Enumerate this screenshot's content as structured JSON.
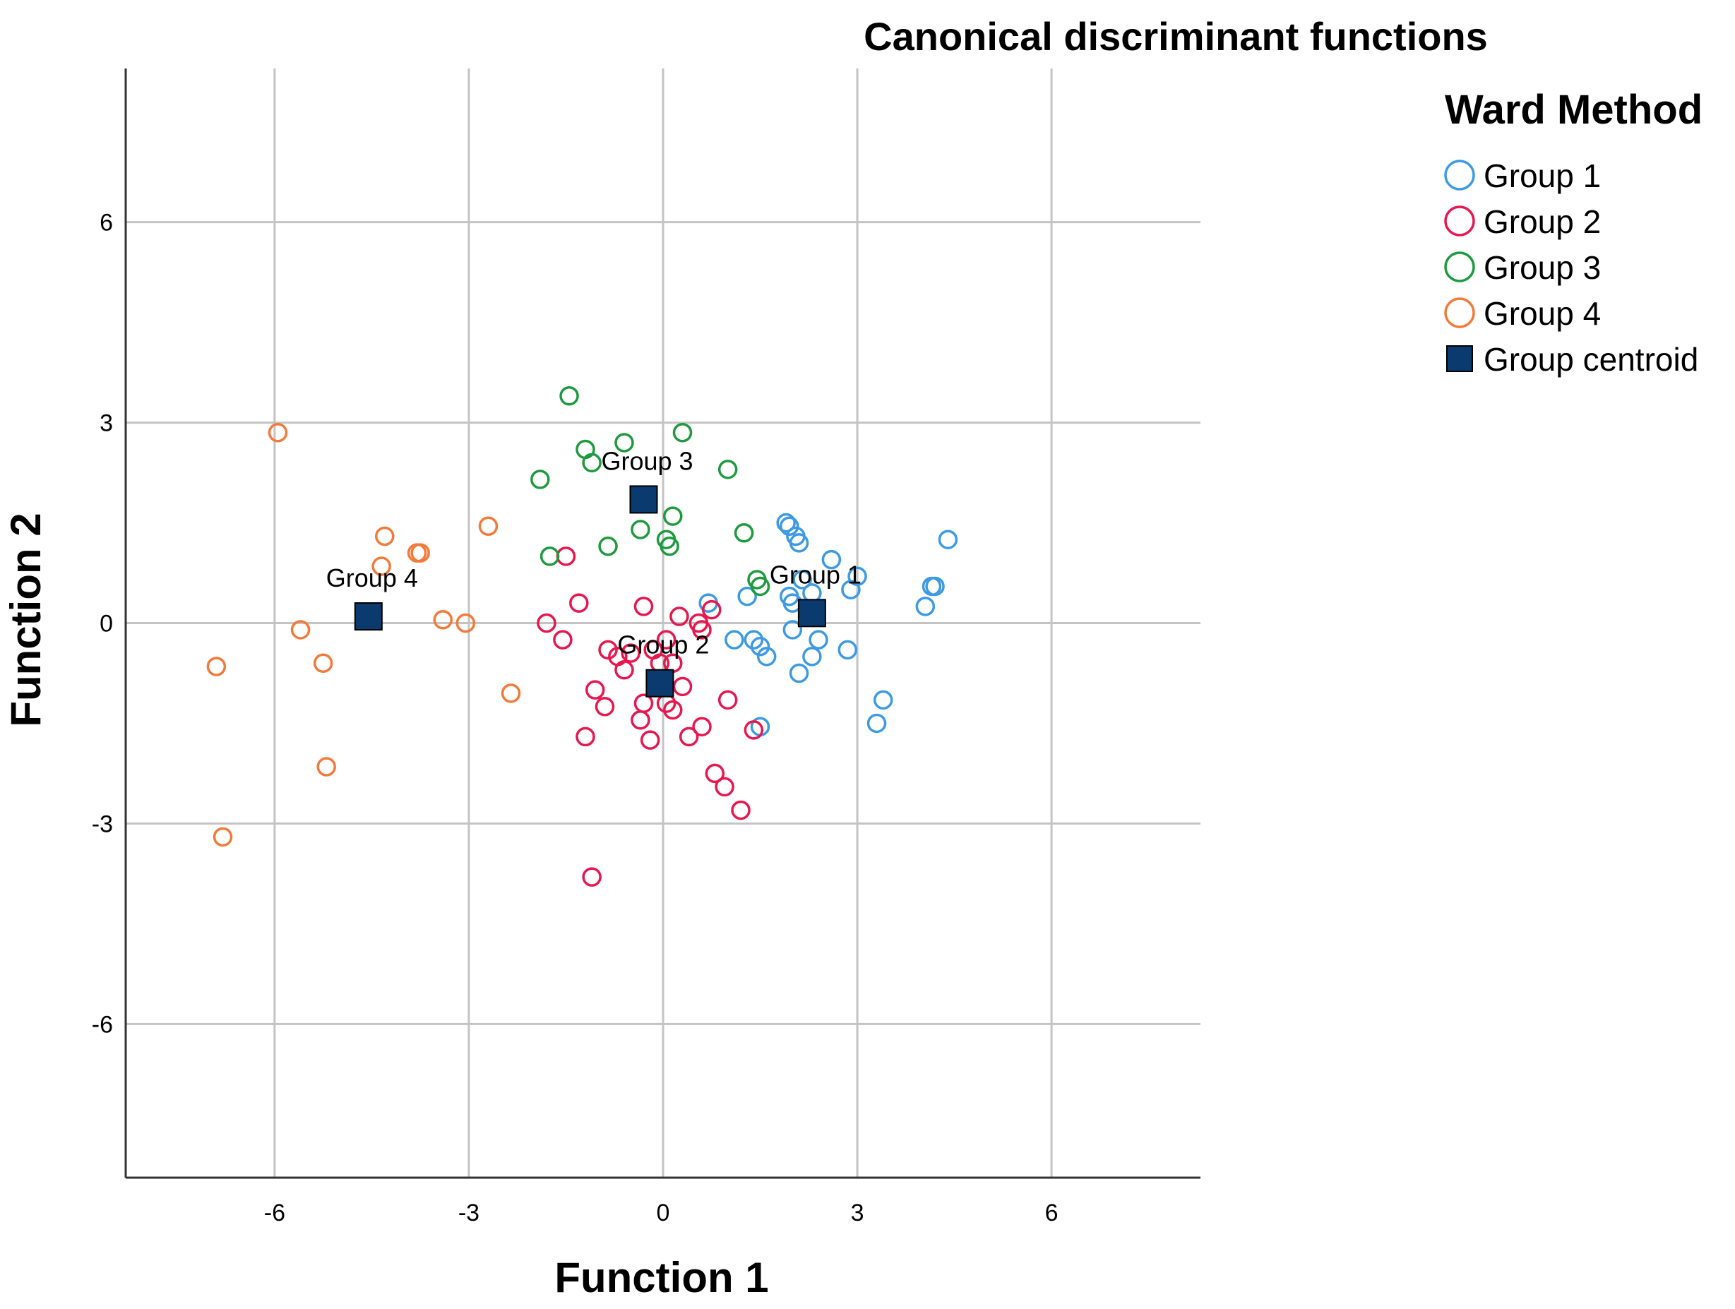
{
  "chart_data": {
    "type": "scatter",
    "title": "Canonical discriminant functions",
    "xlabel": "Function 1",
    "ylabel": "Function 2",
    "xlim": [
      -8.3,
      8.3
    ],
    "ylim": [
      -8.3,
      8.3
    ],
    "xticks": [
      -6,
      -3,
      0,
      3,
      6
    ],
    "yticks": [
      6,
      3,
      0,
      -3,
      -6
    ],
    "xtick_labels": [
      "-6",
      "-3",
      "0",
      "3",
      "6"
    ],
    "ytick_labels": [
      "6",
      "3",
      "0",
      "-3",
      "-6"
    ],
    "grid": true,
    "legend": {
      "title": "Ward Method",
      "position": "right",
      "entries": [
        "Group 1",
        "Group 2",
        "Group 3",
        "Group 4",
        "Group centroid"
      ]
    },
    "series": [
      {
        "name": "Group 1",
        "color": "#3d9ae3",
        "marker": "open-circle",
        "points": [
          [
            1.9,
            1.5
          ],
          [
            1.95,
            1.45
          ],
          [
            2.05,
            1.3
          ],
          [
            2.1,
            1.2
          ],
          [
            2.6,
            0.95
          ],
          [
            3.0,
            0.7
          ],
          [
            2.15,
            0.65
          ],
          [
            2.9,
            0.5
          ],
          [
            2.3,
            0.45
          ],
          [
            1.95,
            0.4
          ],
          [
            2.0,
            0.3
          ],
          [
            1.3,
            0.4
          ],
          [
            0.7,
            0.3
          ],
          [
            1.1,
            -0.25
          ],
          [
            1.4,
            -0.25
          ],
          [
            1.5,
            -0.35
          ],
          [
            1.6,
            -0.5
          ],
          [
            2.0,
            -0.1
          ],
          [
            2.4,
            -0.25
          ],
          [
            2.3,
            -0.5
          ],
          [
            2.1,
            -0.75
          ],
          [
            2.85,
            -0.4
          ],
          [
            4.4,
            1.25
          ],
          [
            4.2,
            0.55
          ],
          [
            4.15,
            0.55
          ],
          [
            4.05,
            0.25
          ],
          [
            3.4,
            -1.15
          ],
          [
            3.3,
            -1.5
          ],
          [
            1.5,
            -1.55
          ]
        ]
      },
      {
        "name": "Group 2",
        "color": "#e8174f",
        "marker": "open-circle",
        "points": [
          [
            -1.5,
            1.0
          ],
          [
            -1.3,
            0.3
          ],
          [
            -1.8,
            0.0
          ],
          [
            -1.55,
            -0.25
          ],
          [
            -0.3,
            0.25
          ],
          [
            0.25,
            0.1
          ],
          [
            0.75,
            0.2
          ],
          [
            0.55,
            0.0
          ],
          [
            0.6,
            -0.1
          ],
          [
            0.05,
            -0.25
          ],
          [
            -0.85,
            -0.4
          ],
          [
            -0.7,
            -0.5
          ],
          [
            -0.6,
            -0.7
          ],
          [
            -0.5,
            -0.45
          ],
          [
            -0.15,
            -0.4
          ],
          [
            -0.05,
            -0.6
          ],
          [
            0.15,
            -0.6
          ],
          [
            0.3,
            -0.95
          ],
          [
            -1.05,
            -1.0
          ],
          [
            -0.9,
            -1.25
          ],
          [
            -0.3,
            -1.2
          ],
          [
            0.05,
            -1.2
          ],
          [
            0.15,
            -1.3
          ],
          [
            -0.35,
            -1.45
          ],
          [
            -1.2,
            -1.7
          ],
          [
            -0.2,
            -1.75
          ],
          [
            0.4,
            -1.7
          ],
          [
            0.6,
            -1.55
          ],
          [
            1.0,
            -1.15
          ],
          [
            1.4,
            -1.6
          ],
          [
            0.8,
            -2.25
          ],
          [
            0.95,
            -2.45
          ],
          [
            1.2,
            -2.8
          ],
          [
            -1.1,
            -3.8
          ]
        ]
      },
      {
        "name": "Group 3",
        "color": "#1e9a3f",
        "marker": "open-circle",
        "points": [
          [
            -1.45,
            3.4
          ],
          [
            0.3,
            2.85
          ],
          [
            -0.6,
            2.7
          ],
          [
            -1.2,
            2.6
          ],
          [
            -1.1,
            2.4
          ],
          [
            1.0,
            2.3
          ],
          [
            -1.9,
            2.15
          ],
          [
            0.15,
            1.6
          ],
          [
            -0.35,
            1.4
          ],
          [
            1.25,
            1.35
          ],
          [
            0.05,
            1.25
          ],
          [
            0.1,
            1.15
          ],
          [
            -0.85,
            1.15
          ],
          [
            -1.75,
            1.0
          ],
          [
            1.45,
            0.65
          ],
          [
            1.5,
            0.55
          ]
        ]
      },
      {
        "name": "Group 4",
        "color": "#f47a3b",
        "marker": "open-circle",
        "points": [
          [
            -5.95,
            2.85
          ],
          [
            -2.7,
            1.45
          ],
          [
            -4.3,
            1.3
          ],
          [
            -3.8,
            1.05
          ],
          [
            -3.75,
            1.05
          ],
          [
            -4.35,
            0.85
          ],
          [
            -3.4,
            0.05
          ],
          [
            -3.05,
            0.0
          ],
          [
            -5.6,
            -0.1
          ],
          [
            -5.25,
            -0.6
          ],
          [
            -6.9,
            -0.65
          ],
          [
            -2.35,
            -1.05
          ],
          [
            -5.2,
            -2.15
          ],
          [
            -6.8,
            -3.2
          ]
        ]
      }
    ],
    "centroids": [
      {
        "label": "Group 1",
        "x": 2.3,
        "y": 0.15
      },
      {
        "label": "Group 2",
        "x": -0.05,
        "y": -0.9
      },
      {
        "label": "Group 3",
        "x": -0.3,
        "y": 1.85
      },
      {
        "label": "Group 4",
        "x": -4.55,
        "y": 0.1
      }
    ],
    "centroid_color": "#0b3a6e"
  }
}
